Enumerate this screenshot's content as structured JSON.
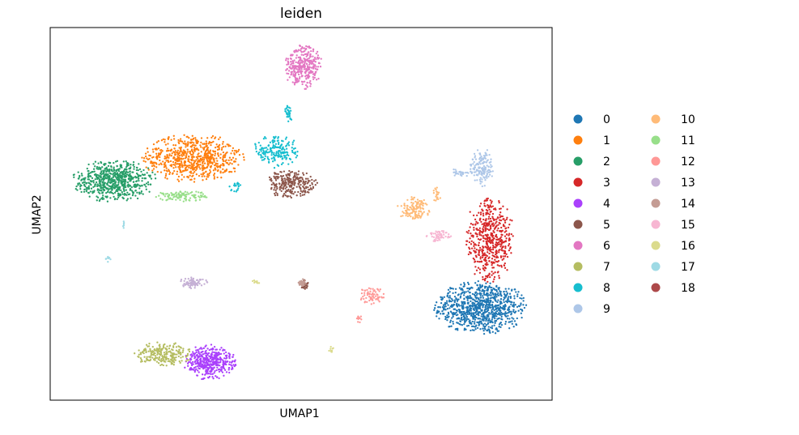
{
  "chart_data": {
    "type": "scatter",
    "title": "leiden",
    "xlabel": "UMAP1",
    "ylabel": "UMAP2",
    "xlim": [
      0,
      100
    ],
    "ylim": [
      0,
      100
    ],
    "grid": false,
    "ticks": false,
    "legend_position": "right",
    "legend_columns": 2,
    "clusters": [
      {
        "name": "0",
        "color": "#1f77b4",
        "blobs": [
          {
            "cx": 85.7,
            "cy": 24.8,
            "rx": 9.5,
            "ry": 7.2,
            "n": 900
          }
        ]
      },
      {
        "name": "1",
        "color": "#ff7f0e",
        "blobs": [
          {
            "cx": 28.5,
            "cy": 65.0,
            "rx": 10.2,
            "ry": 6.5,
            "n": 700
          }
        ]
      },
      {
        "name": "2",
        "color": "#279e68",
        "blobs": [
          {
            "cx": 12.8,
            "cy": 58.8,
            "rx": 8.5,
            "ry": 5.8,
            "n": 650
          }
        ]
      },
      {
        "name": "3",
        "color": "#d62728",
        "blobs": [
          {
            "cx": 87.5,
            "cy": 43.0,
            "rx": 5.2,
            "ry": 11.5,
            "n": 520
          }
        ]
      },
      {
        "name": "4",
        "color": "#aa40fc",
        "blobs": [
          {
            "cx": 31.8,
            "cy": 10.2,
            "rx": 5.3,
            "ry": 4.8,
            "n": 420
          }
        ]
      },
      {
        "name": "5",
        "color": "#8c564b",
        "blobs": [
          {
            "cx": 48.0,
            "cy": 58.0,
            "rx": 5.5,
            "ry": 3.8,
            "n": 260
          },
          {
            "cx": 50.5,
            "cy": 31.0,
            "rx": 1.1,
            "ry": 1.4,
            "n": 28
          }
        ]
      },
      {
        "name": "6",
        "color": "#e377c2",
        "blobs": [
          {
            "cx": 50.5,
            "cy": 89.5,
            "rx": 4.0,
            "ry": 6.0,
            "n": 320
          }
        ]
      },
      {
        "name": "7",
        "color": "#b5bd61",
        "blobs": [
          {
            "cx": 22.5,
            "cy": 12.3,
            "rx": 5.8,
            "ry": 3.4,
            "n": 230
          }
        ]
      },
      {
        "name": "8",
        "color": "#17becf",
        "blobs": [
          {
            "cx": 45.0,
            "cy": 67.0,
            "rx": 4.6,
            "ry": 4.8,
            "n": 190
          },
          {
            "cx": 47.5,
            "cy": 77.0,
            "rx": 0.8,
            "ry": 2.6,
            "n": 30
          },
          {
            "cx": 37.0,
            "cy": 57.0,
            "rx": 1.5,
            "ry": 1.8,
            "n": 20
          }
        ]
      },
      {
        "name": "9",
        "color": "#aec7e8",
        "blobs": [
          {
            "cx": 86.0,
            "cy": 62.5,
            "rx": 2.4,
            "ry": 5.2,
            "n": 150
          },
          {
            "cx": 81.5,
            "cy": 61.0,
            "rx": 2.5,
            "ry": 1.2,
            "n": 25
          }
        ]
      },
      {
        "name": "10",
        "color": "#ffbb78",
        "blobs": [
          {
            "cx": 72.5,
            "cy": 51.5,
            "rx": 3.5,
            "ry": 3.2,
            "n": 130
          },
          {
            "cx": 77.0,
            "cy": 55.0,
            "rx": 0.9,
            "ry": 2.8,
            "n": 20
          }
        ]
      },
      {
        "name": "11",
        "color": "#98df8a",
        "blobs": [
          {
            "cx": 26.0,
            "cy": 54.8,
            "rx": 6.0,
            "ry": 1.5,
            "n": 110
          }
        ]
      },
      {
        "name": "12",
        "color": "#ff9896",
        "blobs": [
          {
            "cx": 64.0,
            "cy": 28.0,
            "rx": 2.6,
            "ry": 2.4,
            "n": 70
          },
          {
            "cx": 61.5,
            "cy": 22.0,
            "rx": 0.7,
            "ry": 1.4,
            "n": 12
          }
        ]
      },
      {
        "name": "13",
        "color": "#c5b0d5",
        "blobs": [
          {
            "cx": 28.5,
            "cy": 31.5,
            "rx": 3.0,
            "ry": 1.5,
            "n": 75
          }
        ]
      },
      {
        "name": "14",
        "color": "#c49c94",
        "blobs": [
          {
            "cx": 50.3,
            "cy": 31.5,
            "rx": 1.0,
            "ry": 1.2,
            "n": 30
          }
        ]
      },
      {
        "name": "15",
        "color": "#f7b6d2",
        "blobs": [
          {
            "cx": 77.5,
            "cy": 44.0,
            "rx": 2.6,
            "ry": 1.5,
            "n": 55
          }
        ]
      },
      {
        "name": "16",
        "color": "#dbdb8d",
        "blobs": [
          {
            "cx": 41.0,
            "cy": 31.8,
            "rx": 0.8,
            "ry": 0.6,
            "n": 10
          },
          {
            "cx": 56.0,
            "cy": 13.5,
            "rx": 0.6,
            "ry": 0.9,
            "n": 10
          }
        ]
      },
      {
        "name": "17",
        "color": "#9edae5",
        "blobs": [
          {
            "cx": 11.5,
            "cy": 38.0,
            "rx": 0.6,
            "ry": 0.9,
            "n": 10
          },
          {
            "cx": 14.5,
            "cy": 47.0,
            "rx": 0.3,
            "ry": 1.4,
            "n": 6
          }
        ]
      },
      {
        "name": "18",
        "color": "#ad494a",
        "blobs": []
      }
    ]
  }
}
